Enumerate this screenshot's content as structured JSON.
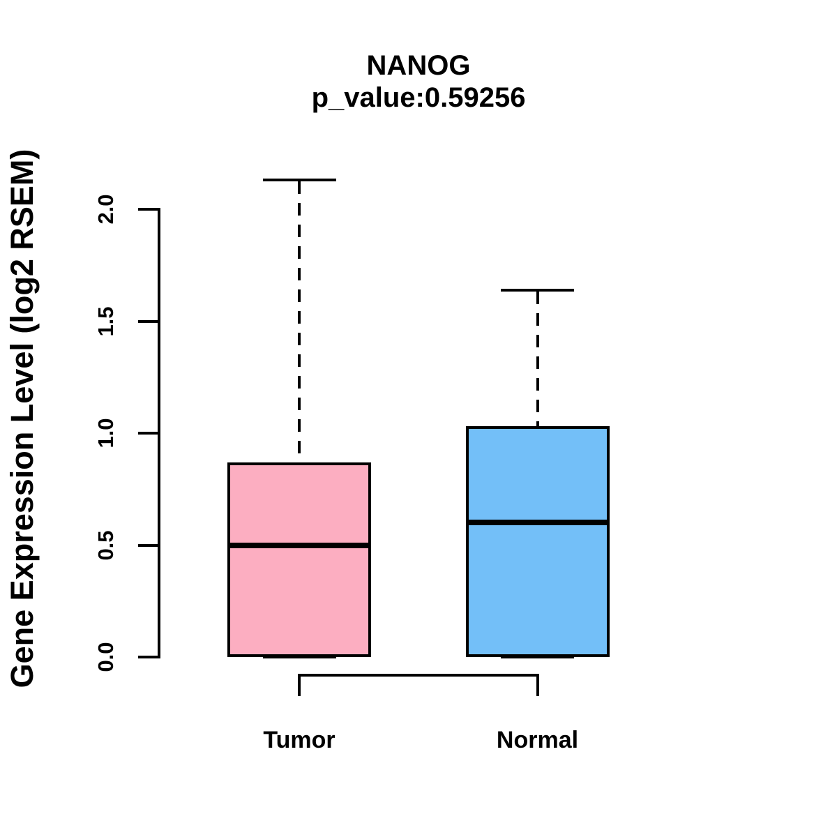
{
  "figure": {
    "title": "NANOG",
    "subtitle": "p_value:0.59256"
  },
  "chart_data": {
    "type": "boxplot",
    "title": "NANOG",
    "subtitle": "p_value:0.59256",
    "p_value": 0.59256,
    "xlabel": "",
    "ylabel": "Gene Expression Level (log2 RSEM)",
    "ylim": [
      0.0,
      2.15
    ],
    "yticks": [
      "0.0",
      "0.5",
      "1.0",
      "1.5",
      "2.0"
    ],
    "grid": false,
    "legend": "none",
    "whisker_style": "dashed",
    "groups": [
      {
        "label": "Tumor",
        "color": "#FCAEC1",
        "whisker_low": 0.0,
        "q1": 0.0,
        "median": 0.5,
        "q3": 0.87,
        "whisker_high": 2.13
      },
      {
        "label": "Normal",
        "color": "#73BFF8",
        "whisker_low": 0.0,
        "q1": 0.0,
        "median": 0.6,
        "q3": 1.03,
        "whisker_high": 1.64
      }
    ]
  }
}
